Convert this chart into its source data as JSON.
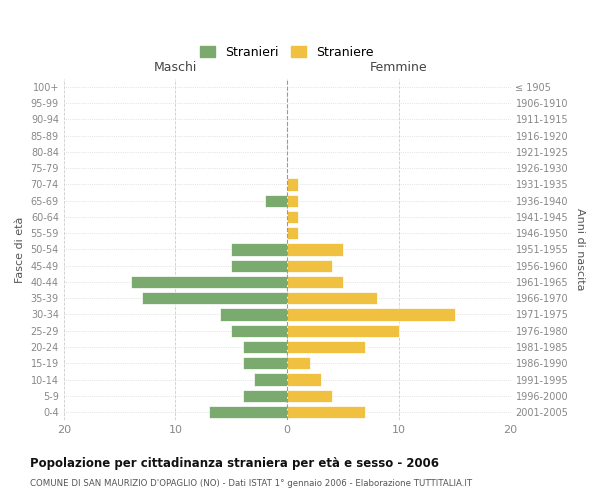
{
  "age_groups": [
    "100+",
    "95-99",
    "90-94",
    "85-89",
    "80-84",
    "75-79",
    "70-74",
    "65-69",
    "60-64",
    "55-59",
    "50-54",
    "45-49",
    "40-44",
    "35-39",
    "30-34",
    "25-29",
    "20-24",
    "15-19",
    "10-14",
    "5-9",
    "0-4"
  ],
  "birth_years": [
    "≤ 1905",
    "1906-1910",
    "1911-1915",
    "1916-1920",
    "1921-1925",
    "1926-1930",
    "1931-1935",
    "1936-1940",
    "1941-1945",
    "1946-1950",
    "1951-1955",
    "1956-1960",
    "1961-1965",
    "1966-1970",
    "1971-1975",
    "1976-1980",
    "1981-1985",
    "1986-1990",
    "1991-1995",
    "1996-2000",
    "2001-2005"
  ],
  "maschi": [
    0,
    0,
    0,
    0,
    0,
    0,
    0,
    2,
    0,
    0,
    5,
    5,
    14,
    13,
    6,
    5,
    4,
    4,
    3,
    4,
    7
  ],
  "femmine": [
    0,
    0,
    0,
    0,
    0,
    0,
    1,
    1,
    1,
    1,
    5,
    4,
    5,
    8,
    15,
    10,
    7,
    2,
    3,
    4,
    7
  ],
  "maschi_color": "#7aaa6d",
  "femmine_color": "#f0c040",
  "background_color": "#ffffff",
  "grid_color": "#cccccc",
  "title": "Popolazione per cittadinanza straniera per età e sesso - 2006",
  "subtitle": "COMUNE DI SAN MAURIZIO D'OPAGLIO (NO) - Dati ISTAT 1° gennaio 2006 - Elaborazione TUTTITALIA.IT",
  "xlabel_left": "Maschi",
  "xlabel_right": "Femmine",
  "ylabel_left": "Fasce di età",
  "ylabel_right": "Anni di nascita",
  "legend_maschi": "Stranieri",
  "legend_femmine": "Straniere",
  "xlim": 20
}
